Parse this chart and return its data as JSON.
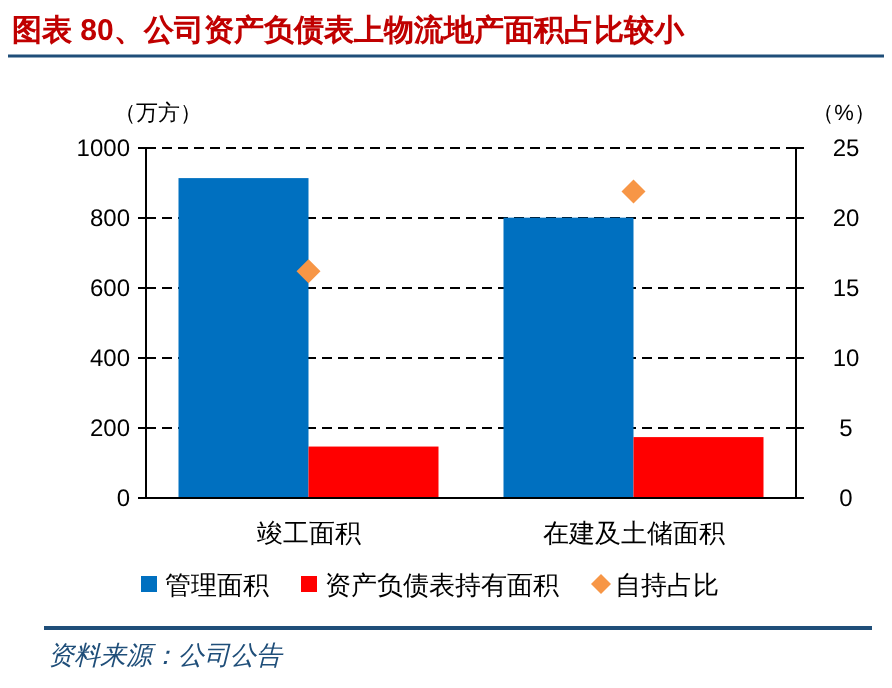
{
  "chart_data": {
    "type": "bar",
    "title": "图表 80、公司资产负债表上物流地产面积占比较小",
    "ylabel": "（万方）",
    "y2label": "（%）",
    "categories": [
      "竣工面积",
      "在建及土储面积"
    ],
    "series": [
      {
        "name": "管理面积",
        "color": "#0070c0",
        "values": [
          914,
          801
        ]
      },
      {
        "name": "资产负债表持有面积",
        "color": "#ff0000",
        "values": [
          147,
          174
        ]
      },
      {
        "name": "自持占比",
        "type": "scatter",
        "axis": "y2",
        "marker": "diamond",
        "color": "#f79646",
        "values": [
          16.2,
          21.9
        ]
      }
    ],
    "ylim": [
      0,
      1000
    ],
    "yticks": [
      0,
      200,
      400,
      600,
      800,
      1000
    ],
    "y2lim": [
      0,
      25
    ],
    "y2ticks": [
      0,
      5,
      10,
      15,
      20,
      25
    ],
    "grid": "y",
    "legend": "bottom",
    "annotations": [
      "资料来源：公司公告"
    ]
  }
}
